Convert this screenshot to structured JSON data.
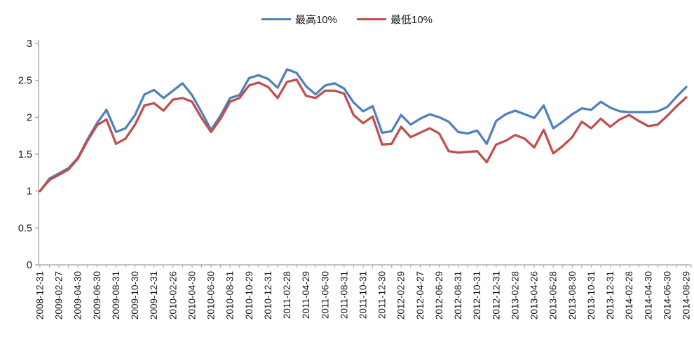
{
  "page": {
    "background": "#ffffff"
  },
  "colors": {
    "axis": "#a0a0a0",
    "text": "#1a1a1a",
    "series_high": "#4F81BD",
    "series_low": "#C0504D"
  },
  "chart_data": {
    "type": "line",
    "title": "",
    "grid": false,
    "legend_position": "top-center",
    "x_axis": {
      "resolution": "monthly",
      "label_every_n_points": 2,
      "tick_label_rotation_deg": 90,
      "tick_labels": [
        "2008-12-31",
        "2009-02-27",
        "2009-04-30",
        "2009-06-30",
        "2009-08-31",
        "2009-10-30",
        "2009-12-31",
        "2010-02-26",
        "2010-04-30",
        "2010-06-30",
        "2010-08-31",
        "2010-10-29",
        "2010-12-31",
        "2011-02-28",
        "2011-04-29",
        "2011-06-30",
        "2011-08-31",
        "2011-10-31",
        "2011-12-30",
        "2012-02-29",
        "2012-04-27",
        "2012-06-29",
        "2012-08-31",
        "2012-10-31",
        "2012-12-31",
        "2013-02-28",
        "2013-04-26",
        "2013-06-28",
        "2013-08-30",
        "2013-10-31",
        "2013-12-31",
        "2014-02-28",
        "2014-04-30",
        "2014-06-30",
        "2014-08-29"
      ]
    },
    "y_axis": {
      "min": 0,
      "max": 3,
      "tick_interval": 0.5,
      "tick_labels": [
        "0",
        "0.5",
        "1",
        "1.5",
        "2",
        "2.5",
        "3"
      ]
    },
    "series": [
      {
        "name": "最高10%",
        "color": "#4F81BD",
        "values": [
          1.0,
          1.17,
          1.24,
          1.31,
          1.45,
          1.7,
          1.92,
          2.1,
          1.8,
          1.85,
          2.03,
          2.31,
          2.37,
          2.26,
          2.36,
          2.46,
          2.3,
          2.07,
          1.83,
          2.02,
          2.26,
          2.3,
          2.53,
          2.57,
          2.52,
          2.4,
          2.65,
          2.6,
          2.42,
          2.31,
          2.43,
          2.46,
          2.39,
          2.2,
          2.08,
          2.15,
          1.79,
          1.81,
          2.03,
          1.9,
          1.98,
          2.04,
          2.0,
          1.94,
          1.8,
          1.78,
          1.82,
          1.64,
          1.95,
          2.04,
          2.09,
          2.04,
          1.99,
          2.16,
          1.85,
          1.94,
          2.04,
          2.12,
          2.1,
          2.21,
          2.13,
          2.08,
          2.07,
          2.07,
          2.07,
          2.08,
          2.14,
          2.28,
          2.41
        ]
      },
      {
        "name": "最低10%",
        "color": "#C0504D",
        "values": [
          1.0,
          1.15,
          1.22,
          1.29,
          1.44,
          1.68,
          1.89,
          1.97,
          1.64,
          1.71,
          1.9,
          2.16,
          2.19,
          2.09,
          2.24,
          2.26,
          2.21,
          1.99,
          1.8,
          1.98,
          2.21,
          2.26,
          2.43,
          2.47,
          2.41,
          2.26,
          2.48,
          2.51,
          2.29,
          2.26,
          2.36,
          2.36,
          2.32,
          2.03,
          1.92,
          2.01,
          1.63,
          1.64,
          1.87,
          1.73,
          1.79,
          1.85,
          1.78,
          1.54,
          1.52,
          1.53,
          1.54,
          1.39,
          1.63,
          1.68,
          1.76,
          1.71,
          1.59,
          1.83,
          1.51,
          1.61,
          1.73,
          1.94,
          1.85,
          1.98,
          1.87,
          1.97,
          2.03,
          1.95,
          1.88,
          1.9,
          2.02,
          2.15,
          2.27
        ]
      }
    ]
  }
}
